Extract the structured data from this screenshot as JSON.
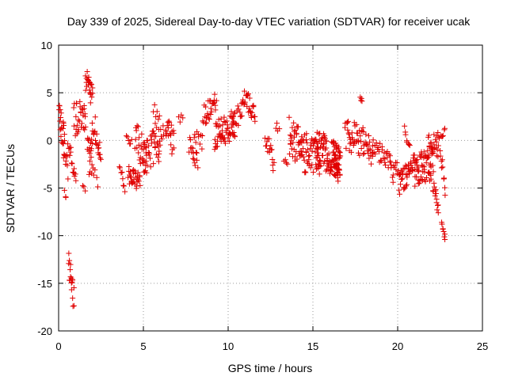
{
  "chart_data": {
    "type": "scatter",
    "title": "Day 339 of 2025, Sidereal Day-to-day VTEC variation (SDTVAR) for receiver ucak",
    "xlabel": "GPS time / hours",
    "ylabel": "SDTVAR / TECUs",
    "xlim": [
      0,
      25
    ],
    "ylim": [
      -20,
      10
    ],
    "x_ticks": [
      0,
      5,
      10,
      15,
      20,
      25
    ],
    "y_ticks": [
      -20,
      -15,
      -10,
      -5,
      0,
      5,
      10
    ],
    "grid": true,
    "marker": "plus",
    "color": "#e00000",
    "segments": [
      {
        "x0": 0.0,
        "x1": 0.35,
        "y0": 2.0,
        "y1": 0.5,
        "amp": 1.8,
        "n": 22
      },
      {
        "x0": 0.3,
        "x1": 0.55,
        "y0": -1.5,
        "y1": -3.0,
        "amp": 1.2,
        "n": 10
      },
      {
        "x0": 0.35,
        "x1": 0.45,
        "y0": -5.5,
        "y1": -5.8,
        "amp": 0.3,
        "n": 3
      },
      {
        "x0": 0.6,
        "x1": 0.9,
        "y0": -13.0,
        "y1": -16.5,
        "amp": 1.5,
        "n": 18
      },
      {
        "x0": 0.55,
        "x1": 1.0,
        "y0": -0.5,
        "y1": -3.8,
        "amp": 1.0,
        "n": 16
      },
      {
        "x0": 0.9,
        "x1": 1.6,
        "y0": 2.0,
        "y1": 3.0,
        "amp": 1.8,
        "n": 30
      },
      {
        "x0": 1.4,
        "x1": 1.55,
        "y0": -5.0,
        "y1": -5.3,
        "amp": 0.3,
        "n": 3
      },
      {
        "x0": 1.6,
        "x1": 2.0,
        "y0": 6.5,
        "y1": 4.5,
        "amp": 1.2,
        "n": 22
      },
      {
        "x0": 1.7,
        "x1": 2.0,
        "y0": 0.0,
        "y1": -1.5,
        "amp": 1.5,
        "n": 16
      },
      {
        "x0": 2.0,
        "x1": 2.5,
        "y0": 2.5,
        "y1": -1.5,
        "amp": 1.5,
        "n": 20
      },
      {
        "x0": 1.8,
        "x1": 2.3,
        "y0": -3.0,
        "y1": -4.2,
        "amp": 0.8,
        "n": 8
      },
      {
        "x0": 3.6,
        "x1": 3.9,
        "y0": -2.5,
        "y1": -5.5,
        "amp": 0.6,
        "n": 8
      },
      {
        "x0": 4.0,
        "x1": 4.3,
        "y0": 0.2,
        "y1": -0.3,
        "amp": 0.4,
        "n": 6
      },
      {
        "x0": 4.1,
        "x1": 4.8,
        "y0": -3.5,
        "y1": -4.5,
        "amp": 1.0,
        "n": 30
      },
      {
        "x0": 4.5,
        "x1": 5.2,
        "y0": 0.5,
        "y1": -2.0,
        "amp": 1.8,
        "n": 26
      },
      {
        "x0": 5.0,
        "x1": 6.0,
        "y0": -1.5,
        "y1": -0.5,
        "amp": 2.0,
        "n": 40
      },
      {
        "x0": 5.6,
        "x1": 6.2,
        "y0": 3.0,
        "y1": 1.0,
        "amp": 1.2,
        "n": 14
      },
      {
        "x0": 6.3,
        "x1": 6.8,
        "y0": 1.5,
        "y1": -0.5,
        "amp": 1.5,
        "n": 20
      },
      {
        "x0": 7.1,
        "x1": 7.3,
        "y0": 2.5,
        "y1": 2.0,
        "amp": 0.5,
        "n": 4
      },
      {
        "x0": 7.7,
        "x1": 8.2,
        "y0": -0.5,
        "y1": -2.0,
        "amp": 1.2,
        "n": 16
      },
      {
        "x0": 8.0,
        "x1": 8.5,
        "y0": 0.5,
        "y1": -0.5,
        "amp": 1.0,
        "n": 10
      },
      {
        "x0": 8.5,
        "x1": 9.3,
        "y0": 2.5,
        "y1": 4.0,
        "amp": 1.2,
        "n": 28
      },
      {
        "x0": 9.2,
        "x1": 10.4,
        "y0": 0.5,
        "y1": 1.5,
        "amp": 1.5,
        "n": 60
      },
      {
        "x0": 10.2,
        "x1": 10.8,
        "y0": 2.0,
        "y1": 3.0,
        "amp": 1.2,
        "n": 16
      },
      {
        "x0": 10.8,
        "x1": 11.6,
        "y0": 5.0,
        "y1": 2.5,
        "amp": 1.2,
        "n": 28
      },
      {
        "x0": 12.2,
        "x1": 12.7,
        "y0": 0.5,
        "y1": -2.5,
        "amp": 1.0,
        "n": 16
      },
      {
        "x0": 12.8,
        "x1": 13.0,
        "y0": 1.5,
        "y1": 1.0,
        "amp": 0.5,
        "n": 4
      },
      {
        "x0": 13.3,
        "x1": 13.5,
        "y0": -2.0,
        "y1": -2.5,
        "amp": 0.5,
        "n": 4
      },
      {
        "x0": 13.6,
        "x1": 14.6,
        "y0": 0.5,
        "y1": -1.5,
        "amp": 2.0,
        "n": 50
      },
      {
        "x0": 14.6,
        "x1": 15.4,
        "y0": -1.0,
        "y1": -2.0,
        "amp": 1.8,
        "n": 36
      },
      {
        "x0": 15.2,
        "x1": 16.6,
        "y0": -0.5,
        "y1": -2.5,
        "amp": 2.0,
        "n": 90
      },
      {
        "x0": 16.2,
        "x1": 16.6,
        "y0": -1.0,
        "y1": -2.5,
        "amp": 1.5,
        "n": 30
      },
      {
        "x0": 16.9,
        "x1": 18.5,
        "y0": 1.0,
        "y1": -1.0,
        "amp": 1.8,
        "n": 60
      },
      {
        "x0": 17.8,
        "x1": 17.9,
        "y0": 4.6,
        "y1": 4.0,
        "amp": 0.4,
        "n": 4
      },
      {
        "x0": 18.5,
        "x1": 19.6,
        "y0": -1.0,
        "y1": -2.0,
        "amp": 1.2,
        "n": 30
      },
      {
        "x0": 19.6,
        "x1": 20.1,
        "y0": -3.5,
        "y1": -2.5,
        "amp": 1.2,
        "n": 14
      },
      {
        "x0": 20.1,
        "x1": 21.0,
        "y0": -4.5,
        "y1": -2.5,
        "amp": 1.2,
        "n": 40
      },
      {
        "x0": 20.4,
        "x1": 20.7,
        "y0": 1.0,
        "y1": -0.5,
        "amp": 1.0,
        "n": 8
      },
      {
        "x0": 21.0,
        "x1": 22.1,
        "y0": -3.0,
        "y1": -2.5,
        "amp": 1.8,
        "n": 60
      },
      {
        "x0": 21.8,
        "x1": 22.4,
        "y0": 0.5,
        "y1": -1.5,
        "amp": 1.2,
        "n": 20
      },
      {
        "x0": 22.1,
        "x1": 22.4,
        "y0": -4.5,
        "y1": -7.2,
        "amp": 0.8,
        "n": 14
      },
      {
        "x0": 22.3,
        "x1": 22.8,
        "y0": 0.5,
        "y1": 0.8,
        "amp": 0.5,
        "n": 10
      },
      {
        "x0": 22.5,
        "x1": 22.8,
        "y0": -1.0,
        "y1": -5.0,
        "amp": 0.8,
        "n": 10
      },
      {
        "x0": 22.6,
        "x1": 22.8,
        "y0": -9.0,
        "y1": -10.2,
        "amp": 0.4,
        "n": 8
      }
    ]
  }
}
